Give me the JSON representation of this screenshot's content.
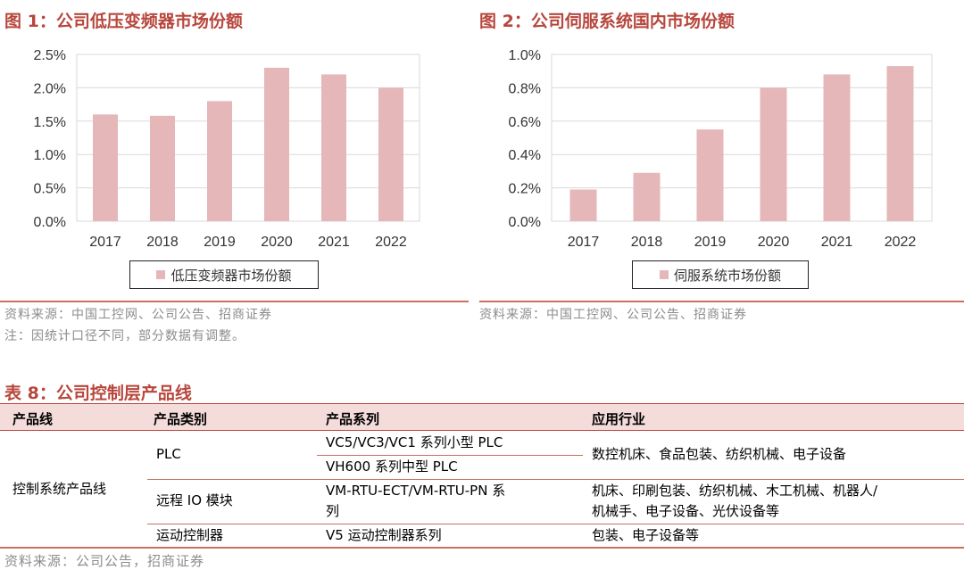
{
  "colors": {
    "bar": "#e5b7b8",
    "accent": "#b7463c",
    "rule": "#c9705f",
    "header_bg": "#f4dcdb"
  },
  "figure1": {
    "title": "图 1：公司低压变频器市场份额"
  },
  "figure2": {
    "title": "图 2：公司伺服系统国内市场份额"
  },
  "notes": {
    "source_left": "资料来源：中国工控网、公司公告、招商证券",
    "note_left": "注：因统计口径不同，部分数据有调整。",
    "source_right": "资料来源：中国工控网、公司公告、招商证券"
  },
  "chart_data": [
    {
      "type": "bar",
      "title": "图 1：公司低压变频器市场份额",
      "categories": [
        "2017",
        "2018",
        "2019",
        "2020",
        "2021",
        "2022"
      ],
      "series": [
        {
          "name": "低压变频器市场份额",
          "values": [
            1.6,
            1.58,
            1.8,
            2.3,
            2.2,
            2.0
          ]
        }
      ],
      "unit": "%",
      "ylim": [
        0,
        2.5
      ],
      "yticks": [
        "0.0%",
        "0.5%",
        "1.0%",
        "1.5%",
        "2.0%",
        "2.5%"
      ],
      "grid": true,
      "legend": "bottom"
    },
    {
      "type": "bar",
      "title": "图 2：公司伺服系统国内市场份额",
      "categories": [
        "2017",
        "2018",
        "2019",
        "2020",
        "2021",
        "2022"
      ],
      "series": [
        {
          "name": "伺服系统市场份额",
          "values": [
            0.19,
            0.29,
            0.55,
            0.8,
            0.88,
            0.93
          ]
        }
      ],
      "unit": "%",
      "ylim": [
        0,
        1.0
      ],
      "yticks": [
        "0.0%",
        "0.2%",
        "0.4%",
        "0.6%",
        "0.8%",
        "1.0%"
      ],
      "grid": true,
      "legend": "bottom"
    }
  ],
  "table": {
    "title": "表 8：公司控制层产品线",
    "headers": [
      "产品线",
      "产品类别",
      "产品系列",
      "应用行业"
    ],
    "product_line": "控制系统产品线",
    "rows": [
      {
        "category": "PLC",
        "series": [
          "VC5/VC3/VC1 系列小型 PLC",
          "VH600 系列中型 PLC"
        ],
        "industry": "数控机床、食品包装、纺织机械、电子设备"
      },
      {
        "category": "远程 IO 模块",
        "series_line1": "VM-RTU-ECT/VM-RTU-PN 系",
        "series_line2": "列",
        "industry_line1": "机床、印刷包装、纺织机械、木工机械、机器人/",
        "industry_line2": "机械手、电子设备、光伏设备等"
      },
      {
        "category": "运动控制器",
        "series": "V5 运动控制器系列",
        "industry": "包装、电子设备等"
      }
    ],
    "footer": "资料来源：公司公告，招商证券"
  }
}
